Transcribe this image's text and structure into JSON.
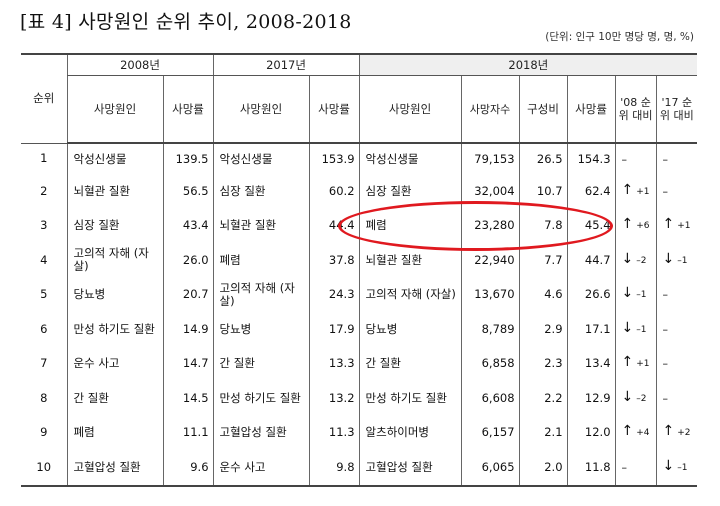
{
  "title": "[표 4] 사망원인 순위 추이, 2008-2018",
  "unit_note": "(단위: 인구 10만 명당 명, 명, %)",
  "header": {
    "rank": "순위",
    "y2008": "2008년",
    "y2017": "2017년",
    "y2018": "2018년",
    "cause": "사망원인",
    "rate": "사망률",
    "deaths": "사망자수",
    "share": "구성비",
    "chg08": "'08 순위 대비",
    "chg17": "'17 순위 대비"
  },
  "rows": [
    {
      "rank": "1",
      "c2008": "악성신생물",
      "r2008": "139.5",
      "c2017": "악성신생물",
      "r2017": "153.9",
      "c2018": "악성신생물",
      "d2018": "79,153",
      "s2018": "26.5",
      "r2018": "154.3",
      "a08": "",
      "n08": "–",
      "a17": "",
      "n17": "–"
    },
    {
      "rank": "2",
      "c2008": "뇌혈관 질환",
      "r2008": "56.5",
      "c2017": "심장 질환",
      "r2017": "60.2",
      "c2018": "심장 질환",
      "d2018": "32,004",
      "s2018": "10.7",
      "r2018": "62.4",
      "a08": "↑",
      "n08": "+1",
      "a17": "",
      "n17": "–"
    },
    {
      "rank": "3",
      "c2008": "심장 질환",
      "r2008": "43.4",
      "c2017": "뇌혈관 질환",
      "r2017": "44.4",
      "c2018": "폐렴",
      "d2018": "23,280",
      "s2018": "7.8",
      "r2018": "45.4",
      "a08": "↑",
      "n08": "+6",
      "a17": "↑",
      "n17": "+1"
    },
    {
      "rank": "4",
      "c2008": "고의적 자해 (자살)",
      "r2008": "26.0",
      "c2017": "폐렴",
      "r2017": "37.8",
      "c2018": "뇌혈관 질환",
      "d2018": "22,940",
      "s2018": "7.7",
      "r2018": "44.7",
      "a08": "↓",
      "n08": "–2",
      "a17": "↓",
      "n17": "–1"
    },
    {
      "rank": "5",
      "c2008": "당뇨병",
      "r2008": "20.7",
      "c2017": "고의적 자해 (자살)",
      "r2017": "24.3",
      "c2018": "고의적 자해 (자살)",
      "d2018": "13,670",
      "s2018": "4.6",
      "r2018": "26.6",
      "a08": "↓",
      "n08": "–1",
      "a17": "",
      "n17": "–"
    },
    {
      "rank": "6",
      "c2008": "만성 하기도 질환",
      "r2008": "14.9",
      "c2017": "당뇨병",
      "r2017": "17.9",
      "c2018": "당뇨병",
      "d2018": "8,789",
      "s2018": "2.9",
      "r2018": "17.1",
      "a08": "↓",
      "n08": "–1",
      "a17": "",
      "n17": "–"
    },
    {
      "rank": "7",
      "c2008": "운수 사고",
      "r2008": "14.7",
      "c2017": "간 질환",
      "r2017": "13.3",
      "c2018": "간 질환",
      "d2018": "6,858",
      "s2018": "2.3",
      "r2018": "13.4",
      "a08": "↑",
      "n08": "+1",
      "a17": "",
      "n17": "–"
    },
    {
      "rank": "8",
      "c2008": "간 질환",
      "r2008": "14.5",
      "c2017": "만성 하기도 질환",
      "r2017": "13.2",
      "c2018": "만성 하기도 질환",
      "d2018": "6,608",
      "s2018": "2.2",
      "r2018": "12.9",
      "a08": "↓",
      "n08": "–2",
      "a17": "",
      "n17": "–"
    },
    {
      "rank": "9",
      "c2008": "폐렴",
      "r2008": "11.1",
      "c2017": "고혈압성 질환",
      "r2017": "11.3",
      "c2018": "알츠하이머병",
      "d2018": "6,157",
      "s2018": "2.1",
      "r2018": "12.0",
      "a08": "↑",
      "n08": "+4",
      "a17": "↑",
      "n17": "+2"
    },
    {
      "rank": "10",
      "c2008": "고혈압성 질환",
      "r2008": "9.6",
      "c2017": "운수 사고",
      "r2017": "9.8",
      "c2018": "고혈압성 질환",
      "d2018": "6,065",
      "s2018": "2.0",
      "r2018": "11.8",
      "a08": "",
      "n08": "–",
      "a17": "↓",
      "n17": "–1"
    }
  ],
  "highlight_color": "#e0191f"
}
